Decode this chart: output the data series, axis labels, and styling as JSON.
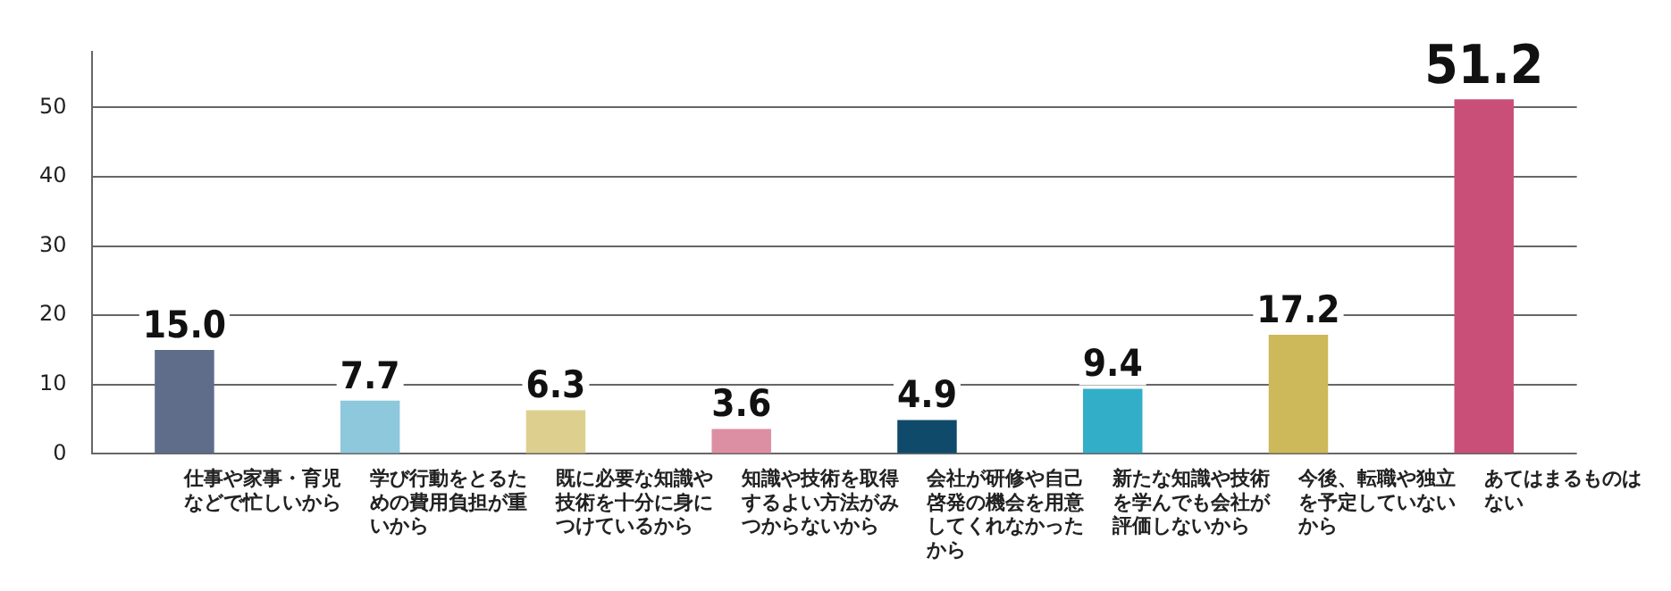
{
  "chart_data": {
    "type": "bar",
    "categories": [
      "仕事や家事・育児などで忙しいから",
      "学び行動をとるための費用負担が重いから",
      "既に必要な知識や技術を十分に身につけているから",
      "知識や技術を取得するよい方法がみつからないから",
      "会社が研修や自己啓発の機会を用意してくれなかったから",
      "新たな知識や技術を学んでも会社が評価しないから",
      "今後、転職や独立を予定していないから",
      "あてはまるものはない"
    ],
    "values": [
      15.0,
      7.7,
      6.3,
      3.6,
      4.9,
      9.4,
      17.2,
      51.2
    ],
    "colors": [
      "#5f6d8a",
      "#8ec8dc",
      "#ddd08f",
      "#dc8fa3",
      "#0f4a6a",
      "#33aec8",
      "#cdb85a",
      "#c94f78"
    ],
    "value_labels": [
      "15.0",
      "7.7",
      "6.3",
      "3.6",
      "4.9",
      "9.4",
      "17.2",
      "51.2"
    ],
    "ylim": [
      0,
      58
    ],
    "yticks": [
      0,
      10,
      20,
      30,
      40,
      50
    ],
    "grid": "y"
  }
}
